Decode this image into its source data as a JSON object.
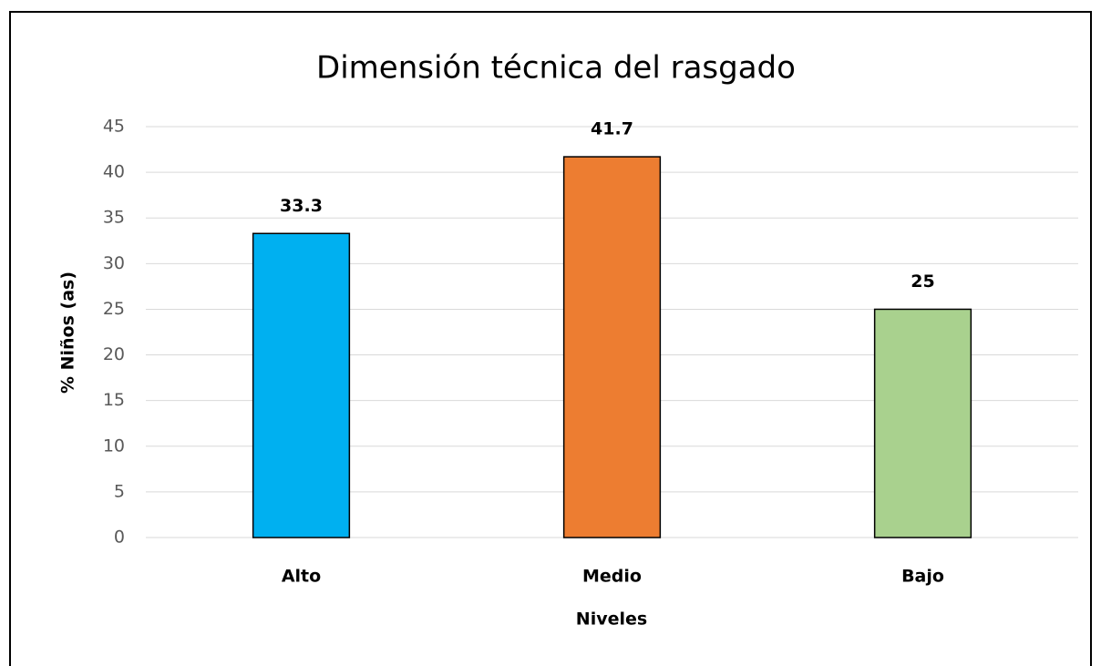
{
  "chart_data": {
    "type": "bar",
    "title": "Dimensión técnica del rasgado",
    "x_label": "Niveles",
    "y_label": "% Niños (as)",
    "categories": [
      "Alto",
      "Medio",
      "Bajo"
    ],
    "values": [
      33.3,
      41.7,
      25
    ],
    "colors": [
      "#00b0f0",
      "#ed7d31",
      "#a9d18e"
    ],
    "ylim": [
      0,
      45
    ],
    "yticks": [
      0,
      5,
      10,
      15,
      20,
      25,
      30,
      35,
      40,
      45
    ],
    "grid": true
  }
}
